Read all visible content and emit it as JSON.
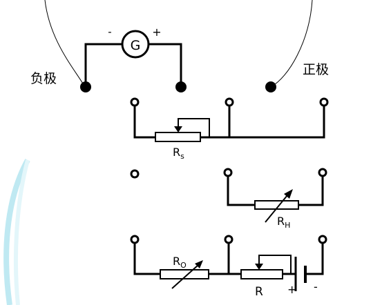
{
  "labels": {
    "negative_pole": "负极",
    "positive_pole": "正极",
    "galvanometer": "G",
    "galvanometer_minus": "-",
    "galvanometer_plus": "+",
    "rs_main": "R",
    "rs_sub": "s",
    "rh_main": "R",
    "rh_sub": "H",
    "r0_main": "R",
    "r0_sub": "O",
    "r_main": "R",
    "battery_plus": "+",
    "battery_minus": "-"
  },
  "colors": {
    "wire": "#000000",
    "background": "#ffffff",
    "watermark": "#bfe9f2"
  }
}
